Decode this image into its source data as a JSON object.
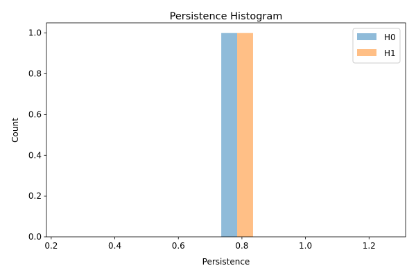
{
  "chart_data": {
    "type": "bar",
    "title": "Persistence Histogram",
    "xlabel": "Persistence",
    "ylabel": "Count",
    "xlim": [
      0.185,
      1.315
    ],
    "ylim": [
      0,
      1.05
    ],
    "xticks": [
      0.2,
      0.4,
      0.6,
      0.8,
      1.0,
      1.2
    ],
    "xtick_labels": [
      "0.2",
      "0.4",
      "0.6",
      "0.8",
      "1.0",
      "1.2"
    ],
    "yticks": [
      0.0,
      0.2,
      0.4,
      0.6,
      0.8,
      1.0
    ],
    "ytick_labels": [
      "0.0",
      "0.2",
      "0.4",
      "0.6",
      "0.8",
      "1.0"
    ],
    "grid": false,
    "legend_position": "top-right",
    "series": [
      {
        "name": "H0",
        "color": "#1f77b4",
        "opacity": 0.5,
        "bins": [
          {
            "x0": 0.735,
            "x1": 0.785,
            "count": 1
          }
        ]
      },
      {
        "name": "H1",
        "color": "#ff7f0e",
        "opacity": 0.5,
        "bins": [
          {
            "x0": 0.785,
            "x1": 0.835,
            "count": 1
          }
        ]
      }
    ]
  }
}
